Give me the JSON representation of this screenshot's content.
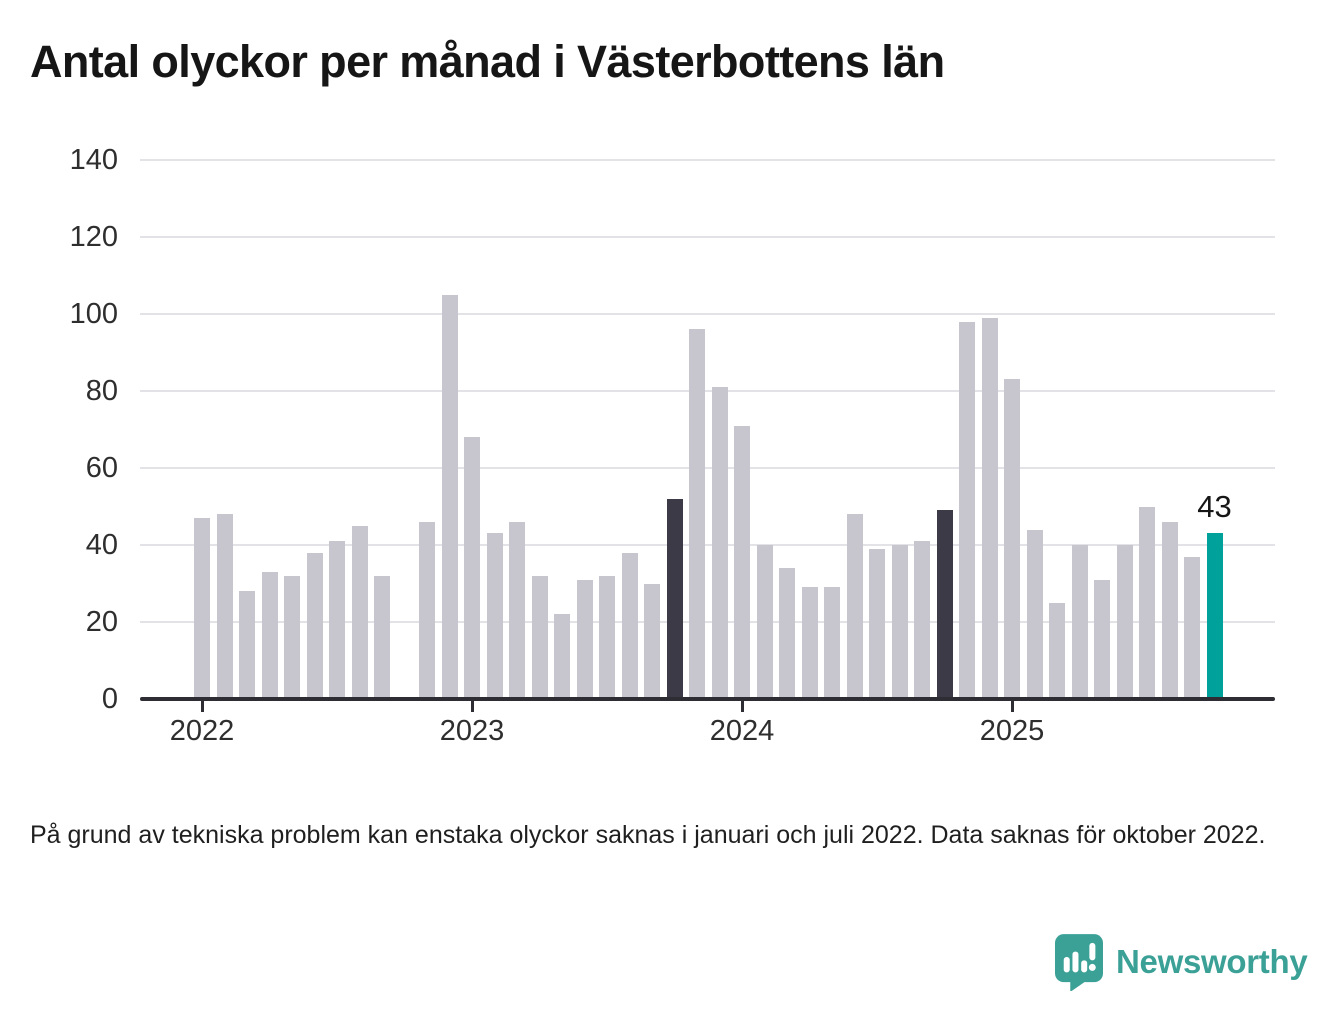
{
  "title": "Antal olyckor per månad i Västerbottens län",
  "footnote": "På grund av tekniska problem kan enstaka olyckor saknas i januari och juli 2022. Data saknas för oktober 2022.",
  "brand": {
    "name": "Newsworthy"
  },
  "colors": {
    "bar_default": "#c7c6cf",
    "bar_compare_dark": "#3b3a46",
    "bar_current": "#00a19a",
    "gridline": "#e3e2e7",
    "axis": "#2e2d33",
    "text_primary": "#161616",
    "text_axis": "#2e2e2e",
    "brand_teal": "#3ba197"
  },
  "chart_data": {
    "type": "bar",
    "title": "Antal olyckor per månad i Västerbottens län",
    "months": [
      "2022-01",
      "2022-02",
      "2022-03",
      "2022-04",
      "2022-05",
      "2022-06",
      "2022-07",
      "2022-08",
      "2022-09",
      "2022-10",
      "2022-11",
      "2022-12",
      "2023-01",
      "2023-02",
      "2023-03",
      "2023-04",
      "2023-05",
      "2023-06",
      "2023-07",
      "2023-08",
      "2023-09",
      "2023-10",
      "2023-11",
      "2023-12",
      "2024-01",
      "2024-02",
      "2024-03",
      "2024-04",
      "2024-05",
      "2024-06",
      "2024-07",
      "2024-08",
      "2024-09",
      "2024-10",
      "2024-11",
      "2024-12",
      "2025-01",
      "2025-02",
      "2025-03",
      "2025-04",
      "2025-05",
      "2025-06",
      "2025-07",
      "2025-08",
      "2025-09",
      "2025-10"
    ],
    "values": [
      47,
      48,
      28,
      33,
      32,
      38,
      41,
      45,
      32,
      null,
      46,
      105,
      68,
      43,
      46,
      32,
      22,
      31,
      32,
      38,
      30,
      52,
      96,
      81,
      71,
      40,
      34,
      29,
      29,
      48,
      39,
      40,
      41,
      49,
      98,
      99,
      83,
      44,
      25,
      40,
      31,
      40,
      50,
      46,
      37,
      43
    ],
    "missing_months": [
      "2022-10"
    ],
    "highlight_dark_months": [
      "2023-10",
      "2024-10"
    ],
    "current_month": "2025-10",
    "current_value_label": "43",
    "ylim": [
      0,
      140
    ],
    "yticks": [
      0,
      20,
      40,
      60,
      80,
      100,
      120,
      140
    ],
    "xticks": [
      {
        "label": "2022",
        "month": "2022-01"
      },
      {
        "label": "2023",
        "month": "2023-01"
      },
      {
        "label": "2024",
        "month": "2024-01"
      },
      {
        "label": "2025",
        "month": "2025-01"
      }
    ],
    "grid": true,
    "legend": "none"
  }
}
